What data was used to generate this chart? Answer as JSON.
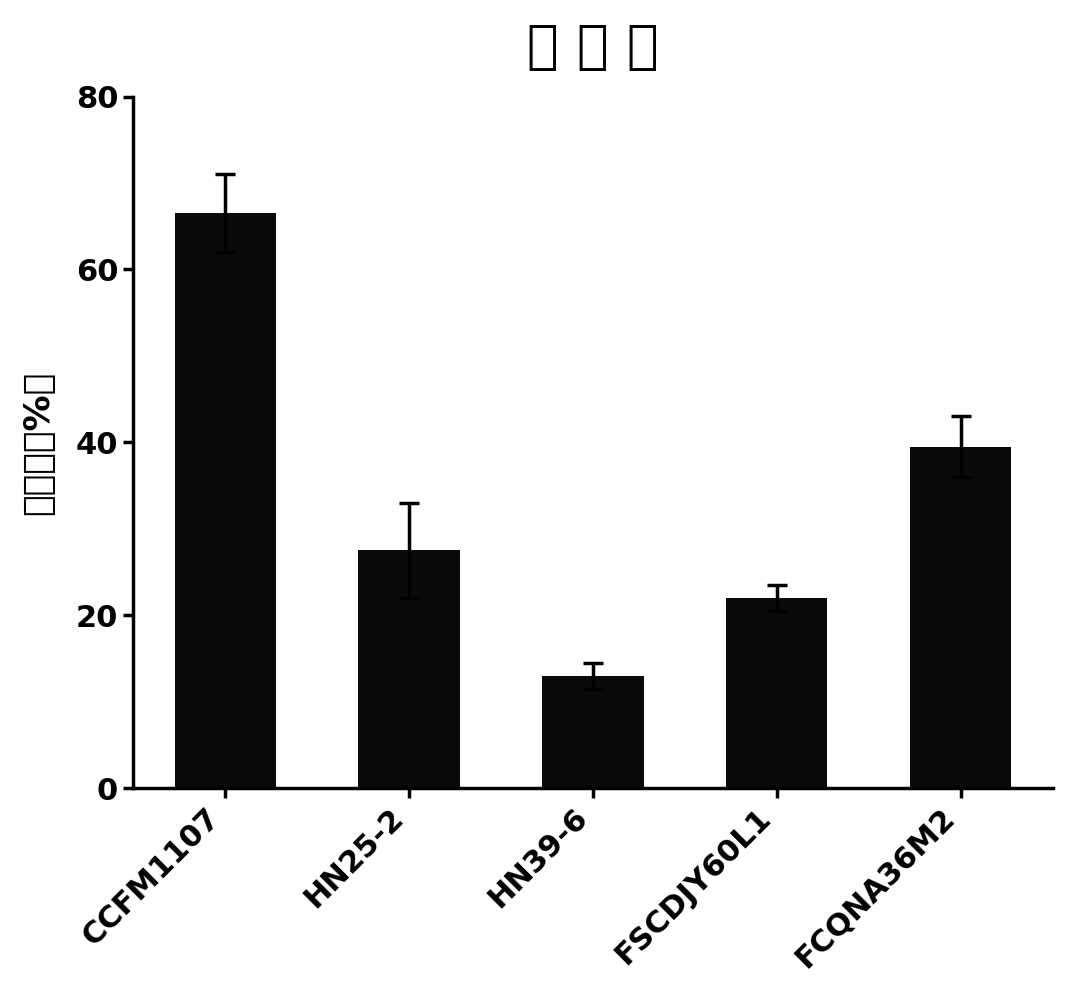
{
  "title": "吸 附 率",
  "categories": [
    "CCFM1107",
    "HN25-2",
    "HN39-6",
    "FSCDJY60L1",
    "FCQNA36M2"
  ],
  "values": [
    66.5,
    27.5,
    13.0,
    22.0,
    39.5
  ],
  "errors": [
    4.5,
    5.5,
    1.5,
    1.5,
    3.5
  ],
  "bar_color": "#0a0a0a",
  "ylabel": "吸附率（%）",
  "ylim": [
    0,
    80
  ],
  "yticks": [
    0,
    20,
    40,
    60,
    80
  ],
  "background_color": "#ffffff",
  "title_fontsize": 38,
  "axis_fontsize": 26,
  "tick_fontsize": 22,
  "bar_width": 0.55
}
